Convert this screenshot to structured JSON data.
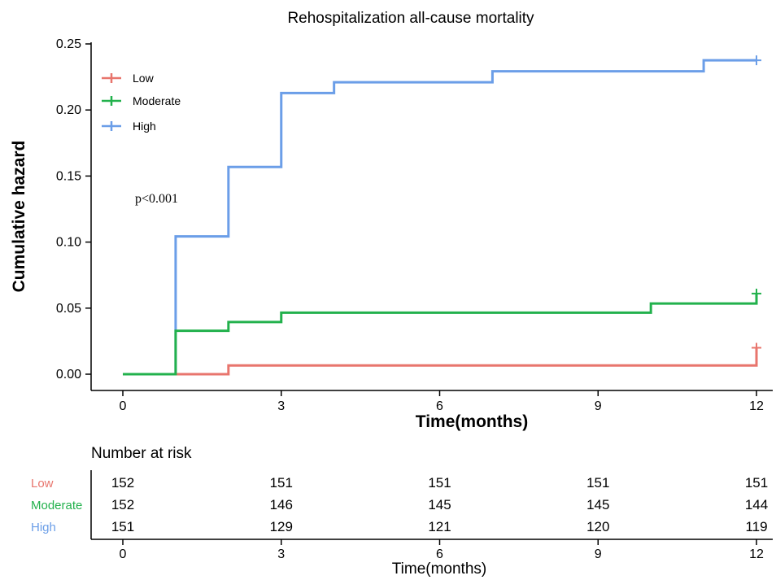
{
  "chart_data": {
    "type": "line",
    "step": true,
    "title": "Rehospitalization all-cause mortality",
    "xlabel": "Time(months)",
    "ylabel": "Cumulative hazard",
    "xlim": [
      0,
      12
    ],
    "ylim": [
      0,
      0.25
    ],
    "xticks": [
      "0",
      "3",
      "6",
      "9",
      "12"
    ],
    "yticks": [
      "0.00",
      "0.05",
      "0.10",
      "0.15",
      "0.20",
      "0.25"
    ],
    "grid": false,
    "legend_position": "top-left",
    "annotation": "p<0.001",
    "series": [
      {
        "name": "Low",
        "color": "#e8756d",
        "x": [
          0,
          1,
          2,
          3,
          12,
          12
        ],
        "y": [
          0,
          0,
          0.0066,
          0.0066,
          0.0066,
          0.02
        ]
      },
      {
        "name": "Moderate",
        "color": "#22b14c",
        "x": [
          0,
          1,
          2,
          3,
          10,
          12
        ],
        "y": [
          0,
          0.0329,
          0.0395,
          0.0466,
          0.0535,
          0.061
        ]
      },
      {
        "name": "High",
        "color": "#6b9ee8",
        "x": [
          0,
          1,
          2,
          3,
          4,
          7,
          11,
          12
        ],
        "y": [
          0,
          0.1043,
          0.1569,
          0.2128,
          0.221,
          0.2293,
          0.2376,
          0.2376
        ]
      }
    ]
  },
  "risk_table": {
    "title": "Number at risk",
    "xlabel": "Time(months)",
    "times": [
      "0",
      "3",
      "6",
      "9",
      "12"
    ],
    "rows": [
      {
        "name": "Low",
        "color": "#e8756d",
        "values": [
          "152",
          "151",
          "151",
          "151",
          "151"
        ]
      },
      {
        "name": "Moderate",
        "color": "#22b14c",
        "values": [
          "152",
          "146",
          "145",
          "145",
          "144"
        ]
      },
      {
        "name": "High",
        "color": "#6b9ee8",
        "values": [
          "151",
          "129",
          "121",
          "120",
          "119"
        ]
      }
    ]
  }
}
